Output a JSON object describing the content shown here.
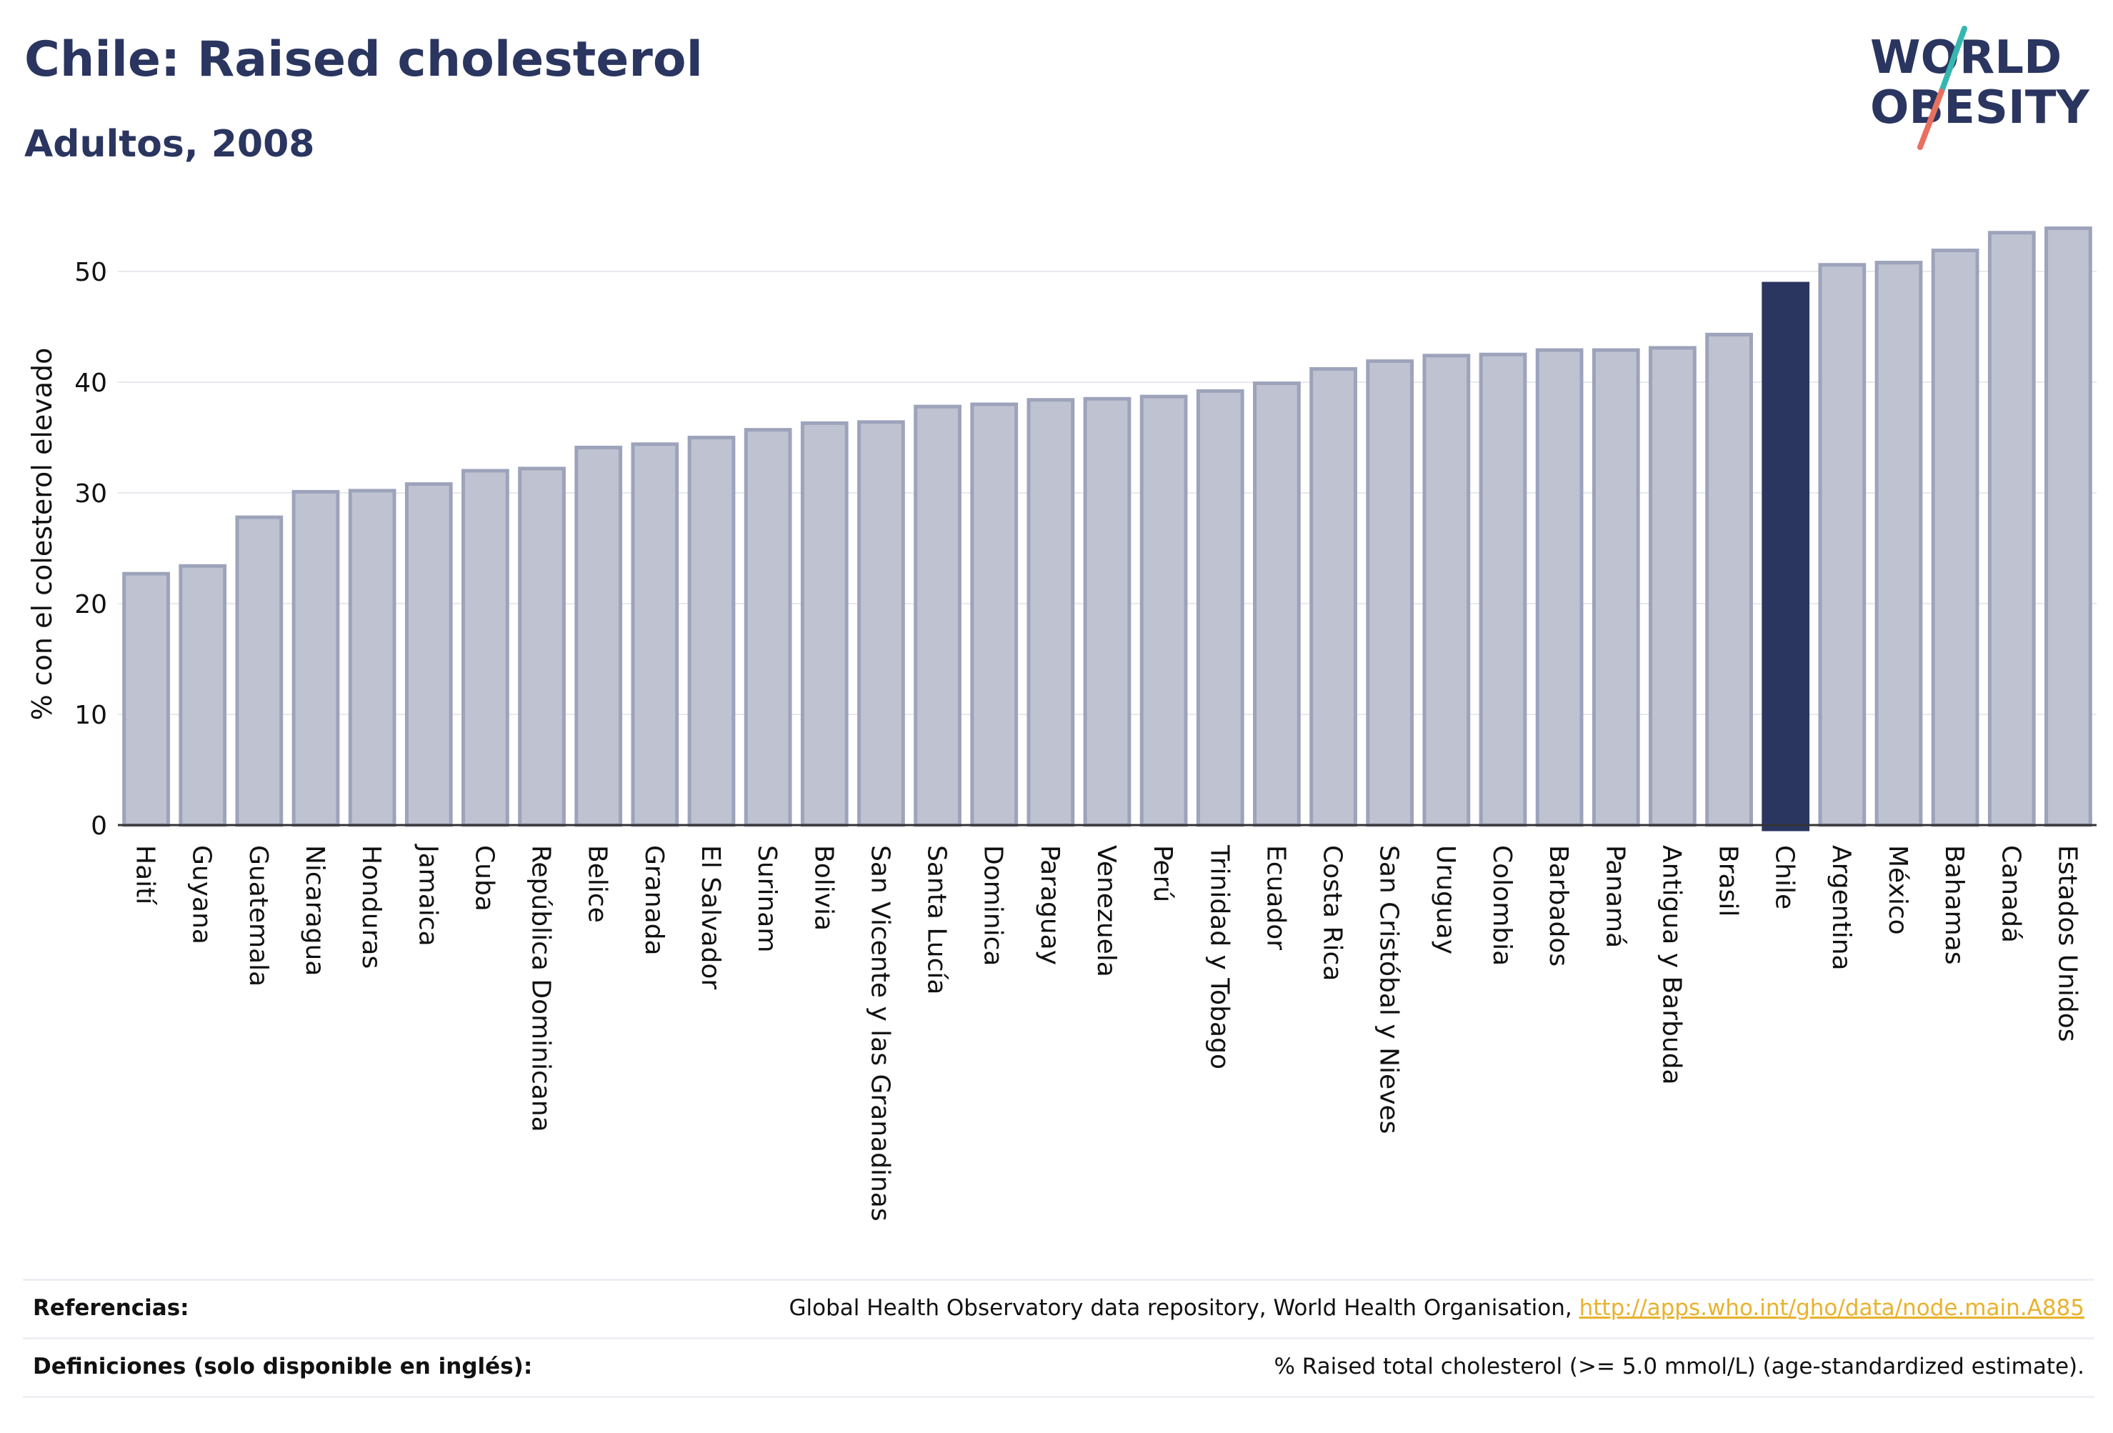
{
  "header": {
    "title": "Chile: Raised cholesterol",
    "subtitle": "Adultos, 2008"
  },
  "logo": {
    "line1": "WORLD",
    "line2": "OBESITY",
    "accent_teal": "#35b7b0",
    "accent_red": "#e9705f"
  },
  "colors": {
    "bar": "#bfc3d1",
    "bar_stroke": "#9da3ba",
    "highlight": "#2a3560",
    "grid": "#e8e9ef",
    "axis": "#333333"
  },
  "chart_data": {
    "type": "bar",
    "ylabel": "% con el colesterol elevado",
    "xlabel": "",
    "ylim": [
      0,
      55
    ],
    "yticks": [
      0,
      10,
      20,
      30,
      40,
      50
    ],
    "grid": true,
    "highlight": "Chile",
    "categories": [
      "Haití",
      "Guyana",
      "Guatemala",
      "Nicaragua",
      "Honduras",
      "Jamaica",
      "Cuba",
      "República Dominicana",
      "Belice",
      "Granada",
      "El Salvador",
      "Surinam",
      "Bolivia",
      "San Vicente y las Granadinas",
      "Santa Lucía",
      "Dominica",
      "Paraguay",
      "Venezuela",
      "Perú",
      "Trinidad y Tobago",
      "Ecuador",
      "Costa Rica",
      "San Cristóbal y Nieves",
      "Uruguay",
      "Colombia",
      "Barbados",
      "Panamá",
      "Antigua y Barbuda",
      "Brasil",
      "Chile",
      "Argentina",
      "México",
      "Bahamas",
      "Canadá",
      "Estados Unidos"
    ],
    "values": [
      22.7,
      23.4,
      27.8,
      30.1,
      30.2,
      30.8,
      32.0,
      32.2,
      34.1,
      34.4,
      35.0,
      35.7,
      36.3,
      36.4,
      37.8,
      38.0,
      38.4,
      38.5,
      38.7,
      39.2,
      39.9,
      41.2,
      41.9,
      42.4,
      42.5,
      42.9,
      42.9,
      43.1,
      44.3,
      48.9,
      50.6,
      50.8,
      51.9,
      53.5,
      53.9
    ]
  },
  "footer": {
    "references_label": "Referencias:",
    "references_text": "Global Health Observatory data repository, World Health Organisation, ",
    "references_link": "http://apps.who.int/gho/data/node.main.A885",
    "definitions_label": "Definiciones (solo disponible en inglés):",
    "definitions_text": "% Raised total cholesterol (>= 5.0 mmol/L) (age-standardized estimate)."
  }
}
